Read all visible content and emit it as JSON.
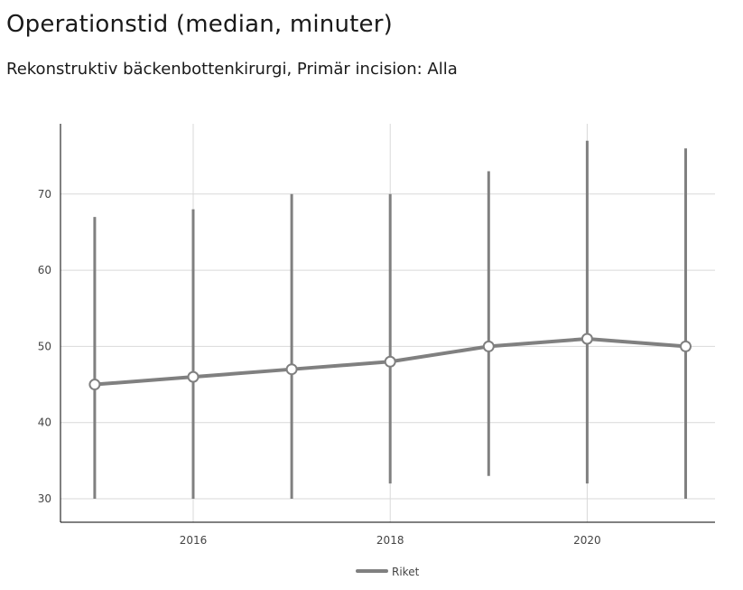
{
  "chart_data": {
    "type": "line",
    "title": "Operationstid (median, minuter)",
    "subtitle": "Rekonstruktiv bäckenbottenkirurgi, Primär incision: Alla",
    "xlabel": "",
    "ylabel": "",
    "x": [
      2015,
      2016,
      2017,
      2018,
      2019,
      2020,
      2021
    ],
    "x_ticks": [
      "2016",
      "2018",
      "2020"
    ],
    "y_ticks": [
      "30",
      "40",
      "50",
      "60",
      "70"
    ],
    "xlim": [
      2013.6,
      2020.2
    ],
    "ylim": [
      27,
      79
    ],
    "series": [
      {
        "name": "Riket",
        "values": [
          45,
          46,
          47,
          48,
          50,
          51,
          50
        ],
        "lower": [
          30,
          30,
          30,
          32,
          33,
          32,
          30
        ],
        "upper": [
          67,
          68,
          70,
          70,
          73,
          77,
          76
        ]
      }
    ],
    "grid": true,
    "legend_position": "bottom-center",
    "colors": {
      "series": "#808080",
      "grid": "#d9d9d9",
      "axis": "#000000",
      "marker_fill": "#ffffff"
    }
  }
}
